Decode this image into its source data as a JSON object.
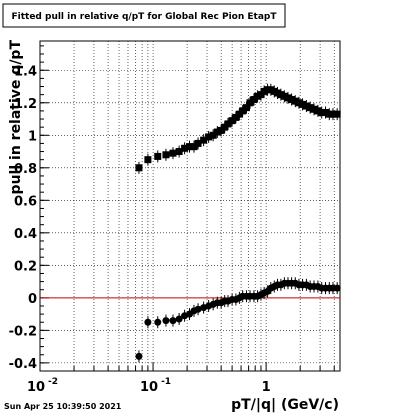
{
  "chart_data": {
    "type": "scatter",
    "title": "Fitted pull in relative q/pT for Global Rec Pion EtapT",
    "xlabel": "pT/|q| (GeV/c)",
    "ylabel": "pull in relative q/pT",
    "x_scale": "log",
    "xlim": [
      0.01,
      4.5
    ],
    "ylim": [
      -0.45,
      1.58
    ],
    "grid": true,
    "x_ticks": [
      {
        "value": 0.01,
        "label": "10"
      },
      {
        "value": 0.1,
        "label": "10"
      },
      {
        "value": 1,
        "label": "1"
      }
    ],
    "x_tick_exponents": [
      "-2",
      "-1",
      ""
    ],
    "y_ticks": [
      {
        "value": -0.4,
        "label": "-0.4"
      },
      {
        "value": -0.2,
        "label": "-0.2"
      },
      {
        "value": 0,
        "label": "0"
      },
      {
        "value": 0.2,
        "label": "0.2"
      },
      {
        "value": 0.4,
        "label": "0.4"
      },
      {
        "value": 0.6,
        "label": "0.6"
      },
      {
        "value": 0.8,
        "label": "0.8"
      },
      {
        "value": 1,
        "label": "1"
      },
      {
        "value": 1.2,
        "label": "1.2"
      },
      {
        "value": 1.4,
        "label": "1.4"
      }
    ],
    "reference_line": {
      "y": 0,
      "color": "#cc0000"
    },
    "series": [
      {
        "marker": "square",
        "color": "#000000",
        "points": [
          [
            0.075,
            0.8
          ],
          [
            0.09,
            0.85
          ],
          [
            0.11,
            0.87
          ],
          [
            0.13,
            0.88
          ],
          [
            0.15,
            0.89
          ],
          [
            0.17,
            0.9
          ],
          [
            0.19,
            0.92
          ],
          [
            0.21,
            0.93
          ],
          [
            0.23,
            0.93
          ],
          [
            0.25,
            0.95
          ],
          [
            0.28,
            0.97
          ],
          [
            0.31,
            0.99
          ],
          [
            0.34,
            1.0
          ],
          [
            0.37,
            1.02
          ],
          [
            0.4,
            1.03
          ],
          [
            0.43,
            1.05
          ],
          [
            0.46,
            1.07
          ],
          [
            0.5,
            1.09
          ],
          [
            0.54,
            1.11
          ],
          [
            0.58,
            1.13
          ],
          [
            0.62,
            1.15
          ],
          [
            0.67,
            1.17
          ],
          [
            0.72,
            1.2
          ],
          [
            0.78,
            1.22
          ],
          [
            0.84,
            1.24
          ],
          [
            0.9,
            1.25
          ],
          [
            0.96,
            1.27
          ],
          [
            1.03,
            1.28
          ],
          [
            1.1,
            1.28
          ],
          [
            1.18,
            1.27
          ],
          [
            1.26,
            1.26
          ],
          [
            1.35,
            1.25
          ],
          [
            1.45,
            1.24
          ],
          [
            1.56,
            1.23
          ],
          [
            1.68,
            1.22
          ],
          [
            1.81,
            1.21
          ],
          [
            1.95,
            1.2
          ],
          [
            2.1,
            1.19
          ],
          [
            2.27,
            1.18
          ],
          [
            2.45,
            1.17
          ],
          [
            2.65,
            1.16
          ],
          [
            2.87,
            1.15
          ],
          [
            3.1,
            1.14
          ],
          [
            3.35,
            1.14
          ],
          [
            3.62,
            1.13
          ],
          [
            3.9,
            1.13
          ],
          [
            4.25,
            1.13
          ]
        ]
      },
      {
        "marker": "circle",
        "color": "#000000",
        "points": [
          [
            0.075,
            -0.36
          ],
          [
            0.09,
            -0.15
          ],
          [
            0.11,
            -0.15
          ],
          [
            0.13,
            -0.14
          ],
          [
            0.15,
            -0.14
          ],
          [
            0.17,
            -0.13
          ],
          [
            0.19,
            -0.11
          ],
          [
            0.21,
            -0.1
          ],
          [
            0.23,
            -0.08
          ],
          [
            0.25,
            -0.07
          ],
          [
            0.28,
            -0.06
          ],
          [
            0.31,
            -0.05
          ],
          [
            0.34,
            -0.04
          ],
          [
            0.37,
            -0.03
          ],
          [
            0.4,
            -0.03
          ],
          [
            0.43,
            -0.02
          ],
          [
            0.46,
            -0.02
          ],
          [
            0.5,
            -0.01
          ],
          [
            0.54,
            -0.01
          ],
          [
            0.58,
            0.0
          ],
          [
            0.62,
            0.01
          ],
          [
            0.67,
            0.01
          ],
          [
            0.72,
            0.01
          ],
          [
            0.78,
            0.01
          ],
          [
            0.84,
            0.01
          ],
          [
            0.9,
            0.02
          ],
          [
            0.96,
            0.03
          ],
          [
            1.03,
            0.04
          ],
          [
            1.1,
            0.06
          ],
          [
            1.18,
            0.07
          ],
          [
            1.26,
            0.08
          ],
          [
            1.35,
            0.08
          ],
          [
            1.45,
            0.09
          ],
          [
            1.56,
            0.09
          ],
          [
            1.68,
            0.09
          ],
          [
            1.81,
            0.09
          ],
          [
            1.95,
            0.08
          ],
          [
            2.1,
            0.08
          ],
          [
            2.27,
            0.08
          ],
          [
            2.45,
            0.07
          ],
          [
            2.65,
            0.07
          ],
          [
            2.87,
            0.07
          ],
          [
            3.1,
            0.06
          ],
          [
            3.35,
            0.06
          ],
          [
            3.62,
            0.06
          ],
          [
            3.9,
            0.06
          ],
          [
            4.25,
            0.06
          ]
        ]
      }
    ]
  },
  "timestamp": "Sun Apr 25 10:39:50 2021"
}
